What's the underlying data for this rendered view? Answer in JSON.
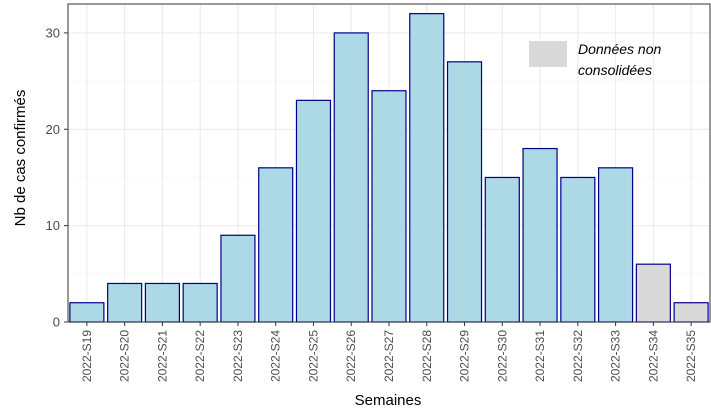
{
  "chart_data": {
    "type": "bar",
    "categories": [
      "2022-S19",
      "2022-S20",
      "2022-S21",
      "2022-S22",
      "2022-S23",
      "2022-S24",
      "2022-S25",
      "2022-S26",
      "2022-S27",
      "2022-S28",
      "2022-S29",
      "2022-S30",
      "2022-S31",
      "2022-S32",
      "2022-S33",
      "2022-S34",
      "2022-S35"
    ],
    "values": [
      2,
      4,
      4,
      4,
      9,
      16,
      23,
      30,
      24,
      32,
      27,
      15,
      18,
      15,
      16,
      6,
      2
    ],
    "consolidated": [
      true,
      true,
      true,
      true,
      true,
      true,
      true,
      true,
      true,
      true,
      true,
      true,
      true,
      true,
      true,
      false,
      false
    ],
    "xlabel": "Semaines",
    "ylabel": "Nb de cas confirmés",
    "ylim": [
      0,
      33
    ],
    "yticks": [
      0,
      10,
      20,
      30
    ],
    "grid": true,
    "legend": {
      "position": "top-right",
      "label": "Données non consolidées"
    },
    "colors": {
      "bar_fill": "#add8e6",
      "bar_stroke": "#00008b",
      "unconsolidated_fill": "#d9d9d9",
      "grid": "#ebebeb",
      "panel_border": "#333333"
    }
  }
}
